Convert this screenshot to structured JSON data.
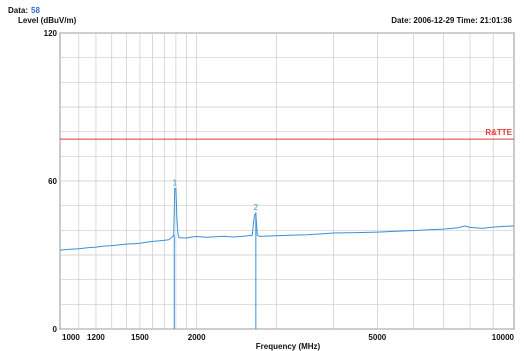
{
  "header": {
    "data_label": "Data:",
    "data_value": "58",
    "date_time": "Date: 2006-12-29  Time: 21:01:36"
  },
  "chart_data": {
    "type": "line",
    "title": "",
    "xlabel": "Frequency (MHz)",
    "ylabel": "Level (dBuV/m)",
    "x_scale": "log",
    "xlim": [
      1000,
      10000
    ],
    "ylim": [
      0,
      120
    ],
    "x_ticks": [
      1000,
      1200,
      1500,
      2000,
      5000,
      10000
    ],
    "x_tick_labels": [
      "1000",
      "1200",
      "1500",
      "2000",
      "5000",
      "10000"
    ],
    "y_ticks": [
      0,
      60,
      120
    ],
    "y_tick_labels": [
      "0",
      "60",
      "120"
    ],
    "grid": true,
    "limit_line": {
      "name": "R&TTE",
      "y": 77,
      "color": "#e53935"
    },
    "series": [
      {
        "color": "#3b8fd9",
        "x": [
          1000,
          1050,
          1100,
          1150,
          1200,
          1250,
          1300,
          1350,
          1400,
          1450,
          1500,
          1550,
          1600,
          1650,
          1700,
          1740,
          1780,
          1790,
          1800,
          1810,
          1820,
          1830,
          1850,
          1900,
          1950,
          2000,
          2100,
          2200,
          2300,
          2400,
          2500,
          2600,
          2650,
          2680,
          2700,
          2720,
          2750,
          2800,
          3000,
          3200,
          3500,
          3800,
          4000,
          4500,
          5000,
          5500,
          6000,
          6500,
          7000,
          7500,
          7800,
          8000,
          8500,
          9000,
          9500,
          10000
        ],
        "y": [
          32,
          32.3,
          32.5,
          32.9,
          33.2,
          33.6,
          33.8,
          34.1,
          34.4,
          34.6,
          34.8,
          35.2,
          35.5,
          35.7,
          36,
          36.2,
          38,
          57,
          57,
          44,
          38,
          37,
          37,
          36.9,
          37.3,
          37.5,
          37.2,
          37.4,
          37.6,
          37.3,
          37.5,
          37.8,
          38,
          46,
          47,
          38,
          37.6,
          37.6,
          37.8,
          38,
          38.2,
          38.6,
          38.9,
          39.1,
          39.3,
          39.6,
          39.9,
          40.2,
          40.5,
          41,
          41.8,
          41.2,
          40.8,
          41.3,
          41.6,
          41.8
        ]
      }
    ],
    "markers": [
      {
        "label": "1",
        "x": 1790,
        "y": 57
      },
      {
        "label": "2",
        "x": 2700,
        "y": 47
      }
    ],
    "spikes": [
      {
        "x": 1785,
        "y": 0
      },
      {
        "x": 2700,
        "y": 0
      }
    ]
  }
}
